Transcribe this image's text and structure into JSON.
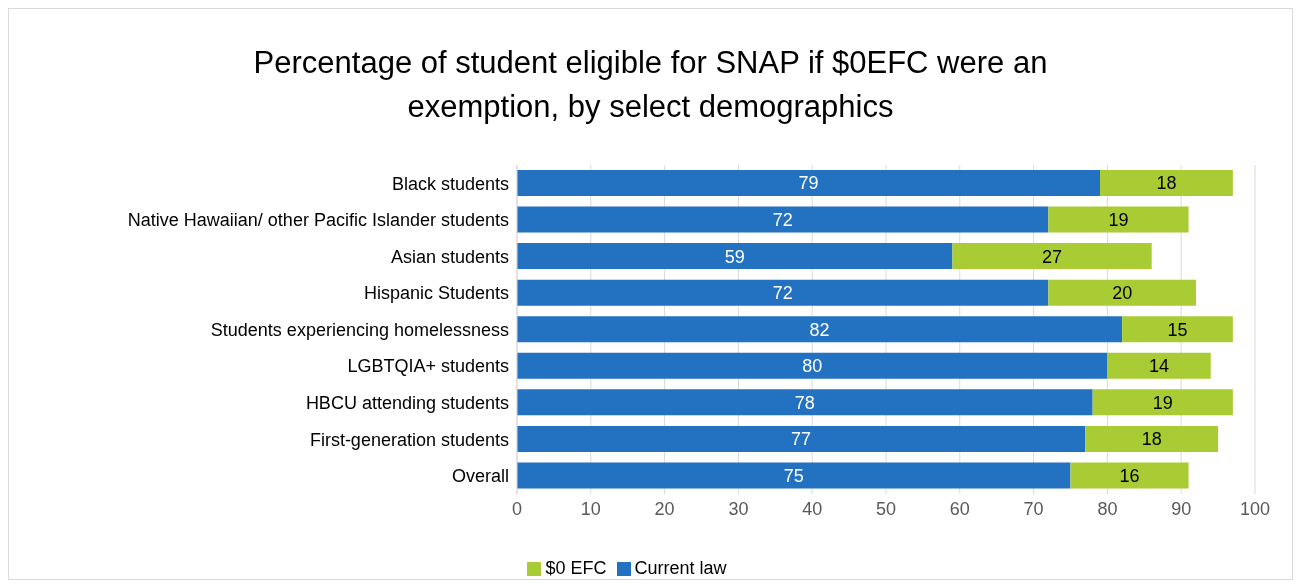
{
  "chart_data": {
    "type": "bar",
    "orientation": "horizontal",
    "stacked": true,
    "title": "Percentage of student eligible for SNAP if $0EFC were an exemption, by select demographics",
    "categories": [
      "Black students",
      "Native Hawaiian/ other Pacific Islander students",
      "Asian students",
      "Hispanic Students",
      "Students experiencing homelessness",
      "LGBTQIA+ students",
      "HBCU attending students",
      "First-generation students",
      "Overall"
    ],
    "series": [
      {
        "name": "Current law",
        "color": "#2372c2",
        "values": [
          79,
          72,
          59,
          72,
          82,
          80,
          78,
          77,
          75
        ]
      },
      {
        "name": "$0 EFC",
        "color": "#a9cc34",
        "values": [
          18,
          19,
          27,
          20,
          15,
          14,
          19,
          18,
          16
        ]
      }
    ],
    "xlim": [
      0,
      100
    ],
    "xticks": [
      0,
      10,
      20,
      30,
      40,
      50,
      60,
      70,
      80,
      90,
      100
    ],
    "grid": "x",
    "legend": "bottom",
    "data_labels": true
  }
}
